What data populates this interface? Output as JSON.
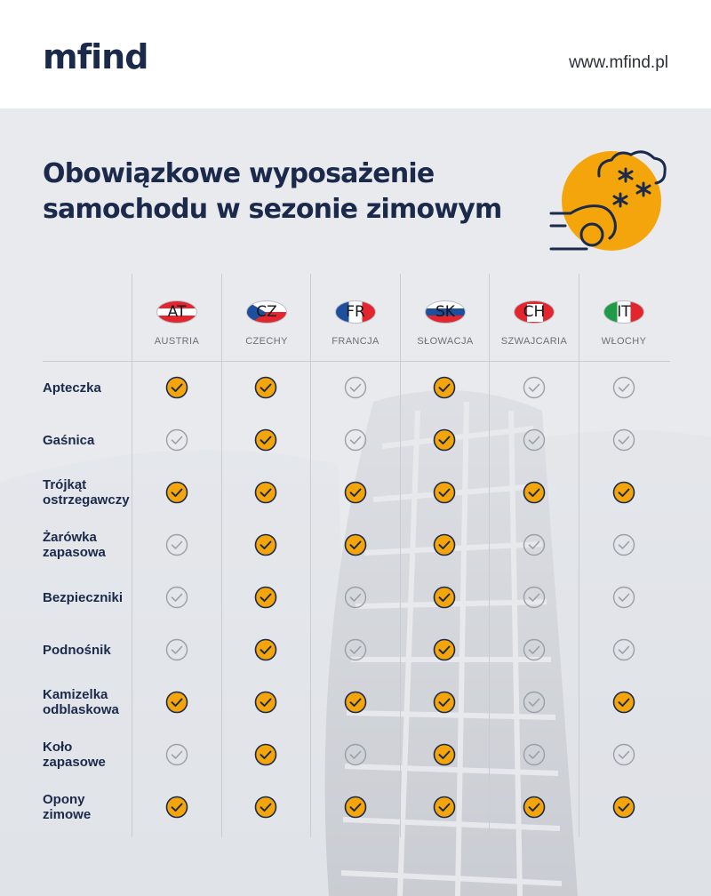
{
  "header": {
    "logo": "mfind",
    "url": "www.mfind.pl"
  },
  "title": {
    "line1": "Obowiązkowe wyposażenie",
    "line2": "samochodu w sezonie zimowym"
  },
  "colors": {
    "required": "#f5a50c",
    "optional": "#9aa0a8",
    "navy": "#1b2a4a"
  },
  "countries": [
    {
      "code": "AT",
      "name": "AUSTRIA"
    },
    {
      "code": "CZ",
      "name": "CZECHY"
    },
    {
      "code": "FR",
      "name": "FRANCJA"
    },
    {
      "code": "SK",
      "name": "SŁOWACJA"
    },
    {
      "code": "CH",
      "name": "SZWAJCARIA"
    },
    {
      "code": "IT",
      "name": "WŁOCHY"
    }
  ],
  "items": [
    {
      "label": [
        "Apteczka"
      ],
      "required": [
        true,
        true,
        false,
        true,
        false,
        false
      ]
    },
    {
      "label": [
        "Gaśnica"
      ],
      "required": [
        false,
        true,
        false,
        true,
        false,
        false
      ]
    },
    {
      "label": [
        "Trójkąt",
        "ostrzegawczy"
      ],
      "required": [
        true,
        true,
        true,
        true,
        true,
        true
      ]
    },
    {
      "label": [
        "Żarówka",
        "zapasowa"
      ],
      "required": [
        false,
        true,
        true,
        true,
        false,
        false
      ]
    },
    {
      "label": [
        "Bezpieczniki"
      ],
      "required": [
        false,
        true,
        false,
        true,
        false,
        false
      ]
    },
    {
      "label": [
        "Podnośnik"
      ],
      "required": [
        false,
        true,
        false,
        true,
        false,
        false
      ]
    },
    {
      "label": [
        "Kamizelka",
        "odblaskowa"
      ],
      "required": [
        true,
        true,
        true,
        true,
        false,
        true
      ]
    },
    {
      "label": [
        "Koło",
        "zapasowe"
      ],
      "required": [
        false,
        true,
        false,
        true,
        false,
        false
      ]
    },
    {
      "label": [
        "Opony",
        "zimowe"
      ],
      "required": [
        true,
        true,
        true,
        true,
        true,
        true
      ]
    }
  ]
}
